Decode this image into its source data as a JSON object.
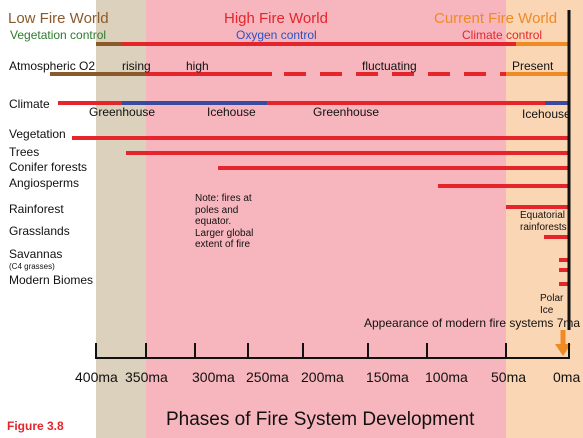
{
  "colors": {
    "low_band": "#dcd1bd",
    "high_band": "#f7b6be",
    "current_band": "#fbd6b4",
    "red_line": "#e5252c",
    "blue_line": "#3a4a9e",
    "brown_line": "#8b5a2b",
    "orange_line": "#f08a24",
    "low_title": "#8b5a2b",
    "high_title": "#e5252c",
    "current_title": "#f08a24",
    "veg_control": "#2d7a2d",
    "oxy_control": "#2a52be",
    "clim_control": "#e5252c",
    "figure_label": "#e5252c"
  },
  "headers": {
    "low_title": "Low Fire World",
    "high_title": "High Fire World",
    "current_title": "Current Fire World",
    "low_control": "Vegetation control",
    "high_control": "Oxygen control",
    "current_control": "Climate control"
  },
  "rows": {
    "atmospheric_o2": "Atmospheric O2",
    "climate": "Climate",
    "vegetation": "Vegetation",
    "trees": "Trees",
    "conifer": "Conifer forests",
    "angiosperms": "Angiosperms",
    "rainforest": "Rainforest",
    "grasslands": "Grasslands",
    "savannas": "Savannas",
    "c4": "(C4 grasses)",
    "modern_biomes": "Modern Biomes"
  },
  "annotations": {
    "rising": "rising",
    "high": "high",
    "fluctuating": "fluctuating",
    "present": "Present",
    "greenhouse_1": "Greenhouse",
    "icehouse_1": "Icehouse",
    "greenhouse_2": "Greenhouse",
    "icehouse_2": "Icehouse",
    "note": "Note: fires at\npoles and\nequator.\nLarger global\nextent of fire",
    "equatorial": "Equatorial\nrainforests",
    "polar": "Polar\nIce",
    "modern_fire": "Appearance of modern fire systems 7ma"
  },
  "axis": {
    "ticks": [
      "400ma",
      "350ma",
      "300ma",
      "250ma",
      "200ma",
      "150ma",
      "100ma",
      "50ma",
      "0ma"
    ],
    "title": "Phases of Fire System Development"
  },
  "figure_label": "Figure 3.8"
}
